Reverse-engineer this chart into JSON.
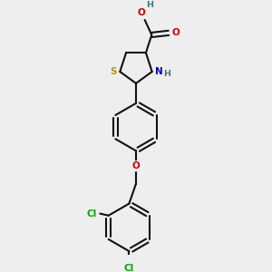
{
  "bg": "#eeeeee",
  "bond_color": "#111111",
  "S_color": "#b8960a",
  "N_color": "#0000cc",
  "O_color": "#cc0000",
  "Cl_color": "#00aa00",
  "H_color": "#447777",
  "lw": 1.5,
  "fs": 7.5,
  "fsH": 6.8,
  "figsize": [
    3.0,
    3.0
  ],
  "dpi": 100,
  "xlim": [
    -1.5,
    1.5
  ],
  "ylim": [
    -4.2,
    2.2
  ]
}
